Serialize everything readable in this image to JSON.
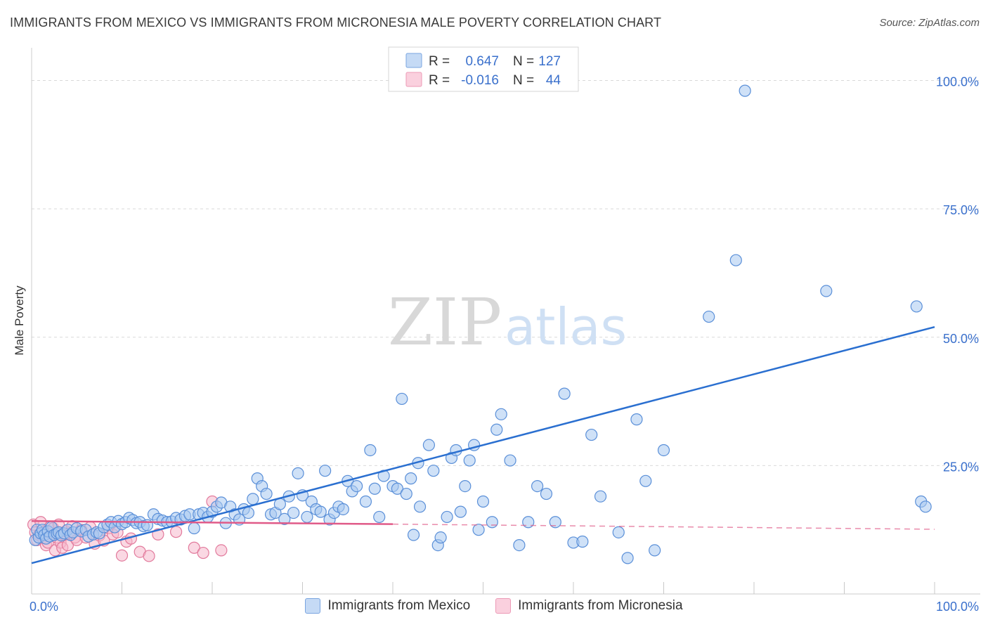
{
  "title": "IMMIGRANTS FROM MEXICO VS IMMIGRANTS FROM MICRONESIA MALE POVERTY CORRELATION CHART",
  "source": "Source: ZipAtlas.com",
  "watermark": {
    "zip": "ZIP",
    "atlas": "atlas"
  },
  "colors": {
    "mexico_fill": "#a8c8f0",
    "mexico_stroke": "#5a8fd8",
    "mexico_line": "#2a6fd0",
    "micronesia_fill": "#f6b8cc",
    "micronesia_stroke": "#e27a9c",
    "micronesia_line": "#e05a88",
    "value_text": "#3a70cc",
    "grid": "#d9d9d9"
  },
  "legend_stats": [
    {
      "r_label": "R =",
      "r_value": "0.647",
      "n_label": "N =",
      "n_value": "127"
    },
    {
      "r_label": "R =",
      "r_value": "-0.016",
      "n_label": "N =",
      "n_value": "44"
    }
  ],
  "chart_data": {
    "type": "scatter",
    "title": "IMMIGRANTS FROM MEXICO VS IMMIGRANTS FROM MICRONESIA MALE POVERTY CORRELATION CHART",
    "xlabel": "",
    "ylabel": "Male Poverty",
    "xlim": [
      0,
      100
    ],
    "ylim": [
      0,
      105
    ],
    "x_tick_labels": [
      {
        "value": 0,
        "label": "0.0%"
      },
      {
        "value": 100,
        "label": "100.0%"
      }
    ],
    "y_tick_labels": [
      {
        "value": 25,
        "label": "25.0%"
      },
      {
        "value": 50,
        "label": "50.0%"
      },
      {
        "value": 75,
        "label": "75.0%"
      },
      {
        "value": 100,
        "label": "100.0%"
      }
    ],
    "legend": [
      "Immigrants from Mexico",
      "Immigrants from Micronesia"
    ],
    "series": [
      {
        "name": "Immigrants from Mexico",
        "trend": {
          "x": [
            0,
            100
          ],
          "y": [
            6,
            52
          ]
        },
        "points": [
          [
            0.4,
            10.5
          ],
          [
            0.6,
            12.5
          ],
          [
            0.8,
            11.0
          ],
          [
            1.0,
            11.8
          ],
          [
            1.2,
            12.5
          ],
          [
            1.4,
            11.5
          ],
          [
            1.6,
            10.8
          ],
          [
            1.8,
            12.2
          ],
          [
            2.0,
            11.2
          ],
          [
            2.2,
            13.0
          ],
          [
            2.5,
            11.5
          ],
          [
            2.8,
            11.8
          ],
          [
            3.0,
            12.0
          ],
          [
            3.3,
            11.4
          ],
          [
            3.6,
            11.8
          ],
          [
            4.0,
            12.5
          ],
          [
            4.3,
            11.5
          ],
          [
            4.6,
            12.0
          ],
          [
            5.0,
            12.8
          ],
          [
            5.5,
            12.2
          ],
          [
            6.0,
            12.5
          ],
          [
            6.3,
            11.2
          ],
          [
            6.8,
            11.6
          ],
          [
            7.2,
            12.0
          ],
          [
            7.5,
            11.8
          ],
          [
            8.0,
            13.0
          ],
          [
            8.4,
            13.5
          ],
          [
            8.8,
            14.0
          ],
          [
            9.2,
            13.0
          ],
          [
            9.6,
            14.2
          ],
          [
            10.0,
            13.6
          ],
          [
            10.4,
            14.0
          ],
          [
            10.8,
            14.8
          ],
          [
            11.2,
            14.4
          ],
          [
            11.6,
            13.8
          ],
          [
            12.0,
            14.0
          ],
          [
            12.4,
            13.2
          ],
          [
            12.8,
            13.4
          ],
          [
            13.5,
            15.5
          ],
          [
            14.0,
            14.6
          ],
          [
            14.5,
            14.3
          ],
          [
            15.0,
            14.0
          ],
          [
            15.5,
            14.1
          ],
          [
            16.0,
            14.8
          ],
          [
            16.5,
            14.5
          ],
          [
            17.0,
            15.2
          ],
          [
            17.5,
            15.5
          ],
          [
            18.0,
            12.8
          ],
          [
            18.5,
            15.5
          ],
          [
            19.0,
            15.8
          ],
          [
            19.5,
            15.0
          ],
          [
            20.0,
            16.0
          ],
          [
            20.5,
            17.0
          ],
          [
            21.0,
            17.8
          ],
          [
            21.5,
            13.8
          ],
          [
            22.0,
            17.0
          ],
          [
            22.5,
            15.5
          ],
          [
            23.0,
            14.5
          ],
          [
            23.5,
            16.5
          ],
          [
            24.0,
            15.8
          ],
          [
            24.5,
            18.5
          ],
          [
            25.0,
            22.5
          ],
          [
            25.5,
            21.0
          ],
          [
            26.0,
            19.5
          ],
          [
            26.5,
            15.5
          ],
          [
            27.0,
            15.8
          ],
          [
            27.5,
            17.5
          ],
          [
            28.0,
            14.6
          ],
          [
            28.5,
            19.0
          ],
          [
            29.0,
            15.8
          ],
          [
            29.5,
            23.5
          ],
          [
            30.0,
            19.2
          ],
          [
            30.5,
            15.0
          ],
          [
            31.0,
            18.0
          ],
          [
            31.5,
            16.5
          ],
          [
            32.0,
            16.0
          ],
          [
            32.5,
            24.0
          ],
          [
            33.0,
            14.5
          ],
          [
            33.5,
            15.8
          ],
          [
            34.0,
            17.0
          ],
          [
            34.5,
            16.5
          ],
          [
            35.0,
            22.0
          ],
          [
            35.5,
            20.0
          ],
          [
            36.0,
            21.0
          ],
          [
            37.0,
            18.0
          ],
          [
            37.5,
            28.0
          ],
          [
            38.0,
            20.5
          ],
          [
            38.5,
            15.0
          ],
          [
            39.0,
            23.0
          ],
          [
            40.0,
            21.0
          ],
          [
            40.5,
            20.5
          ],
          [
            41.0,
            38.0
          ],
          [
            41.5,
            19.5
          ],
          [
            42.0,
            22.5
          ],
          [
            42.3,
            11.5
          ],
          [
            42.8,
            25.5
          ],
          [
            43.0,
            17.0
          ],
          [
            44.0,
            29.0
          ],
          [
            44.5,
            24.0
          ],
          [
            45.0,
            9.5
          ],
          [
            45.3,
            11.0
          ],
          [
            46.0,
            15.0
          ],
          [
            46.5,
            26.5
          ],
          [
            47.0,
            28.0
          ],
          [
            47.5,
            16.0
          ],
          [
            48.0,
            21.0
          ],
          [
            48.5,
            26.0
          ],
          [
            49.0,
            29.0
          ],
          [
            49.5,
            12.5
          ],
          [
            50.0,
            18.0
          ],
          [
            51.0,
            14.0
          ],
          [
            51.5,
            32.0
          ],
          [
            52.0,
            35.0
          ],
          [
            53.0,
            26.0
          ],
          [
            54.0,
            9.5
          ],
          [
            55.0,
            14.0
          ],
          [
            56.0,
            21.0
          ],
          [
            57.0,
            19.5
          ],
          [
            58.0,
            14.0
          ],
          [
            59.0,
            39.0
          ],
          [
            60.0,
            10.0
          ],
          [
            61.0,
            10.2
          ],
          [
            62.0,
            31.0
          ],
          [
            63.0,
            19.0
          ],
          [
            65.0,
            12.0
          ],
          [
            66.0,
            7.0
          ],
          [
            67.0,
            34.0
          ],
          [
            68.0,
            22.0
          ],
          [
            69.0,
            8.5
          ],
          [
            70.0,
            28.0
          ],
          [
            75.0,
            54.0
          ],
          [
            78.0,
            65.0
          ],
          [
            79.0,
            98.0
          ],
          [
            88.0,
            59.0
          ],
          [
            98.0,
            56.0
          ],
          [
            98.5,
            18.0
          ],
          [
            99.0,
            17.0
          ]
        ]
      },
      {
        "name": "Immigrants from Micronesia",
        "trend": {
          "x": [
            0,
            40
          ],
          "y": [
            14.2,
            13.6
          ]
        },
        "trend_extension": {
          "x": [
            40,
            100
          ],
          "y": [
            13.6,
            12.6
          ]
        },
        "points": [
          [
            0.2,
            13.5
          ],
          [
            0.4,
            12.0
          ],
          [
            0.6,
            10.5
          ],
          [
            0.8,
            11.5
          ],
          [
            1.0,
            14.0
          ],
          [
            1.2,
            11.0
          ],
          [
            1.4,
            12.2
          ],
          [
            1.6,
            9.5
          ],
          [
            1.8,
            10.0
          ],
          [
            2.0,
            13.0
          ],
          [
            2.2,
            11.8
          ],
          [
            2.4,
            12.8
          ],
          [
            2.6,
            8.5
          ],
          [
            2.8,
            11.0
          ],
          [
            3.0,
            13.5
          ],
          [
            3.2,
            10.0
          ],
          [
            3.4,
            9.0
          ],
          [
            3.6,
            11.5
          ],
          [
            3.8,
            12.2
          ],
          [
            4.0,
            9.5
          ],
          [
            4.2,
            11.8
          ],
          [
            4.5,
            13.2
          ],
          [
            4.8,
            11.0
          ],
          [
            5.0,
            10.5
          ],
          [
            5.5,
            12.5
          ],
          [
            6.0,
            11.0
          ],
          [
            6.5,
            13.0
          ],
          [
            7.0,
            9.8
          ],
          [
            7.5,
            11.4
          ],
          [
            8.0,
            10.4
          ],
          [
            8.5,
            12.8
          ],
          [
            9.0,
            11.6
          ],
          [
            9.5,
            12.0
          ],
          [
            10.0,
            7.5
          ],
          [
            10.5,
            10.2
          ],
          [
            11.0,
            10.8
          ],
          [
            12.0,
            8.2
          ],
          [
            13.0,
            7.4
          ],
          [
            14.0,
            11.6
          ],
          [
            16.0,
            12.1
          ],
          [
            18.0,
            9.0
          ],
          [
            19.0,
            8.0
          ],
          [
            20.0,
            18.0
          ],
          [
            21.0,
            8.5
          ]
        ]
      }
    ]
  },
  "bottom_legend": [
    {
      "label": "Immigrants from Mexico"
    },
    {
      "label": "Immigrants from Micronesia"
    }
  ]
}
